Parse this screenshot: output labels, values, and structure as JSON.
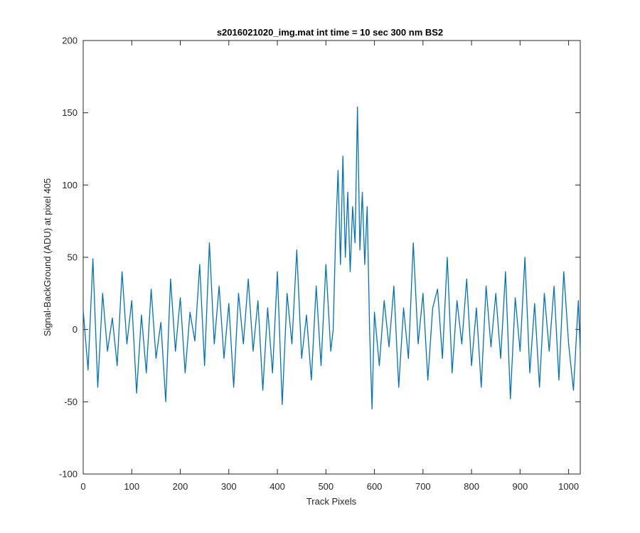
{
  "chart_data": {
    "type": "line",
    "title": "s2016021020_img.mat int time = 10 sec  300 nm BS2",
    "xlabel": "Track Pixels",
    "ylabel": "Signal-BackGround (ADU) at pixel 405",
    "xlim": [
      0,
      1024
    ],
    "ylim": [
      -100,
      200
    ],
    "xticks": [
      0,
      100,
      200,
      300,
      400,
      500,
      600,
      700,
      800,
      900,
      1000
    ],
    "yticks": [
      -100,
      -50,
      0,
      50,
      100,
      150,
      200
    ],
    "grid": false,
    "line_color": "#0072BD",
    "series": [
      {
        "x": [
          0,
          10,
          20,
          30,
          40,
          50,
          60,
          70,
          80,
          90,
          100,
          110,
          120,
          130,
          140,
          150,
          160,
          170,
          180,
          190,
          200,
          210,
          220,
          230,
          240,
          250,
          260,
          270,
          280,
          290,
          300,
          310,
          320,
          330,
          340,
          350,
          360,
          370,
          380,
          390,
          400,
          410,
          420,
          430,
          440,
          450,
          460,
          470,
          480,
          490,
          500,
          510,
          515,
          520,
          525,
          530,
          535,
          540,
          545,
          550,
          555,
          560,
          565,
          570,
          575,
          580,
          585,
          590,
          595,
          600,
          610,
          620,
          630,
          640,
          650,
          660,
          670,
          680,
          690,
          700,
          710,
          720,
          730,
          740,
          750,
          760,
          770,
          780,
          790,
          800,
          810,
          820,
          830,
          840,
          850,
          860,
          870,
          880,
          890,
          900,
          910,
          920,
          930,
          940,
          950,
          960,
          970,
          980,
          990,
          1000,
          1010,
          1020,
          1024
        ],
        "values": [
          13,
          -28,
          49,
          -40,
          25,
          -15,
          8,
          -25,
          40,
          -10,
          20,
          -44,
          10,
          -30,
          28,
          -20,
          5,
          -50,
          35,
          -15,
          22,
          -30,
          12,
          -8,
          45,
          -25,
          60,
          -10,
          30,
          -20,
          18,
          -40,
          25,
          -10,
          35,
          -15,
          20,
          -42,
          15,
          -30,
          40,
          -52,
          25,
          -10,
          55,
          -20,
          10,
          -35,
          30,
          -25,
          45,
          -15,
          0,
          65,
          110,
          45,
          120,
          50,
          95,
          40,
          85,
          60,
          154,
          55,
          95,
          45,
          85,
          0,
          -55,
          12,
          -25,
          20,
          -12,
          30,
          -40,
          15,
          -20,
          60,
          -10,
          25,
          -35,
          15,
          28,
          -20,
          50,
          -30,
          20,
          -10,
          35,
          -25,
          15,
          -40,
          30,
          -12,
          25,
          -20,
          40,
          -48,
          22,
          -15,
          50,
          -30,
          18,
          -40,
          25,
          -15,
          30,
          -35,
          40,
          -10,
          -42,
          20,
          -15
        ]
      }
    ]
  }
}
